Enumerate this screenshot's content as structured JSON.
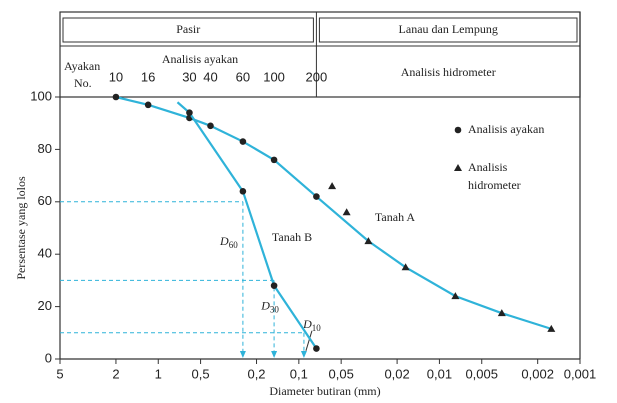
{
  "chart_data": {
    "type": "line",
    "xscale": "log",
    "xlabel": "Diameter butiran (mm)",
    "ylabel": "Persentase yang lolos",
    "xlim": [
      5,
      0.001
    ],
    "ylim": [
      0,
      100
    ],
    "xticks": [
      5,
      2,
      1,
      {
        "value": 0.5,
        "label": "0,5"
      },
      {
        "value": 0.2,
        "label": "0,2"
      },
      {
        "value": 0.1,
        "label": "0,1"
      },
      {
        "value": 0.05,
        "label": "0,05"
      },
      {
        "value": 0.02,
        "label": "0,02"
      },
      {
        "value": 0.01,
        "label": "0,01"
      },
      {
        "value": 0.005,
        "label": "0,005"
      },
      {
        "value": 0.002,
        "label": "0,002"
      },
      {
        "value": 0.001,
        "label": "0,001"
      }
    ],
    "yticks": [
      0,
      20,
      40,
      60,
      80,
      100
    ],
    "header": {
      "left": "Pasir",
      "right": "Lanau dan Lempung",
      "boundary": 0.075,
      "sieve_label": [
        "Ayakan",
        "No."
      ],
      "sieve_title": "Analisis ayakan",
      "hydrometer_title": "Analisis hidrometer"
    },
    "sieve_numbers": {
      "labels": [
        "10",
        "16",
        "30",
        "40",
        "60",
        "100",
        "200"
      ],
      "x": [
        2,
        1.18,
        0.6,
        0.425,
        0.25,
        0.15,
        0.075
      ]
    },
    "series": [
      {
        "name": "Tanah A",
        "color": "#2fb3d9",
        "line": true,
        "x": [
          2,
          1.18,
          0.6,
          0.425,
          0.25,
          0.15,
          0.075,
          0.032,
          0.0174,
          0.0077,
          0.0036,
          0.0016
        ],
        "values": [
          100,
          97,
          92,
          89,
          83,
          76,
          62,
          45,
          35,
          24,
          17.5,
          11.5
        ],
        "markers": [
          "circle",
          "circle",
          "circle",
          "circle",
          "circle",
          "circle",
          "circle",
          "triangle",
          "triangle",
          "triangle",
          "triangle",
          "triangle"
        ]
      },
      {
        "name": "Tanah B",
        "color": "#2fb3d9",
        "line": true,
        "x": [
          0.73,
          0.6,
          0.25,
          0.15,
          0.075
        ],
        "values": [
          98,
          94,
          64,
          28,
          4
        ],
        "markers": [
          "none",
          "circle",
          "circle",
          "circle",
          "circle"
        ]
      },
      {
        "color": "#222",
        "line": false,
        "x": [
          0.058,
          0.0457
        ],
        "values": [
          66,
          56
        ],
        "markers": [
          "triangle",
          "triangle"
        ]
      }
    ],
    "guides": [
      {
        "symbol": "D",
        "subscript": "60",
        "y": 60,
        "x": 0.25
      },
      {
        "symbol": "D",
        "subscript": "30",
        "y": 30,
        "x": 0.15
      },
      {
        "symbol": "D",
        "subscript": "10",
        "y": 10,
        "x": 0.092
      }
    ],
    "legend": [
      {
        "marker": "circle",
        "lines": [
          "Analisis ayakan"
        ]
      },
      {
        "marker": "triangle",
        "lines": [
          "Analisis",
          "hidrometer"
        ]
      }
    ]
  }
}
